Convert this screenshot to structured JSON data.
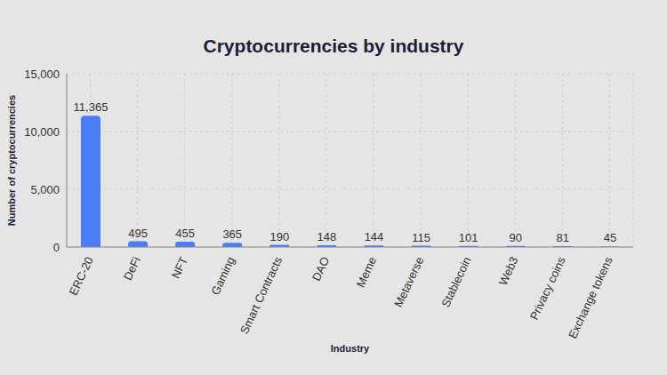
{
  "chart_data": {
    "type": "bar",
    "title": "Cryptocurrencies by industry",
    "x_label": "Industry",
    "y_label": "Number of cryptocurrencies",
    "categories": [
      "ERC-20",
      "DeFi",
      "NFT",
      "Gaming",
      "Smart Contracts",
      "DAO",
      "Meme",
      "Metaverse",
      "Stablecoin",
      "Web3",
      "Privacy coins",
      "Exchange tokens"
    ],
    "values": [
      11365,
      495,
      455,
      365,
      190,
      148,
      144,
      115,
      101,
      90,
      81,
      45
    ],
    "value_labels": [
      "11,365",
      "495",
      "455",
      "365",
      "190",
      "148",
      "144",
      "115",
      "101",
      "90",
      "81",
      "45"
    ],
    "color": "#4a7cf5",
    "ylim": [
      0,
      15000
    ],
    "yticks": [
      0,
      {
        "value": 5000,
        "label": "5,000"
      },
      {
        "value": 10000,
        "label": "10,000"
      },
      {
        "value": 15000,
        "label": "15,000"
      }
    ],
    "grid": true,
    "data_labels": true
  }
}
